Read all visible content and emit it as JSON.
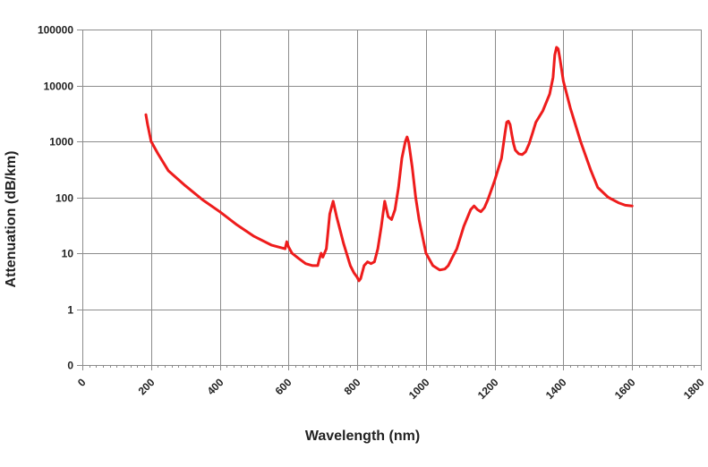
{
  "chart_data": {
    "type": "line",
    "title": "",
    "xlabel": "Wavelength (nm)",
    "ylabel": "Attenuation (dB/km)",
    "xlim": [
      0,
      1800
    ],
    "ylim": [
      0.1,
      100000
    ],
    "yscale": "log",
    "grid": true,
    "x_ticks": [
      0,
      200,
      400,
      600,
      800,
      1000,
      1200,
      1400,
      1600,
      1800
    ],
    "y_ticks": [
      {
        "value": 0.1,
        "label": "0"
      },
      {
        "value": 1,
        "label": "1"
      },
      {
        "value": 10,
        "label": "10"
      },
      {
        "value": 100,
        "label": "100"
      },
      {
        "value": 1000,
        "label": "1000"
      },
      {
        "value": 10000,
        "label": "10000"
      },
      {
        "value": 100000,
        "label": "100000"
      }
    ],
    "series": [
      {
        "color": "#ee1c1c",
        "x": [
          185,
          190,
          200,
          220,
          250,
          300,
          350,
          400,
          450,
          500,
          550,
          590,
          595,
          600,
          610,
          630,
          650,
          670,
          685,
          690,
          695,
          700,
          710,
          720,
          730,
          740,
          760,
          780,
          790,
          800,
          805,
          810,
          820,
          830,
          840,
          850,
          860,
          870,
          880,
          890,
          900,
          910,
          920,
          930,
          940,
          945,
          950,
          960,
          970,
          980,
          1000,
          1020,
          1040,
          1055,
          1065,
          1075,
          1090,
          1110,
          1130,
          1140,
          1150,
          1160,
          1170,
          1180,
          1200,
          1220,
          1230,
          1235,
          1240,
          1245,
          1250,
          1255,
          1260,
          1270,
          1280,
          1290,
          1300,
          1310,
          1320,
          1340,
          1360,
          1370,
          1375,
          1380,
          1385,
          1390,
          1400,
          1420,
          1450,
          1480,
          1500,
          1530,
          1560,
          1580,
          1600
        ],
        "y": [
          3000,
          2000,
          1000,
          600,
          300,
          160,
          90,
          55,
          32,
          20,
          14,
          12,
          16,
          13,
          10,
          8,
          6.5,
          6,
          6,
          8,
          10,
          8.5,
          12,
          50,
          85,
          45,
          15,
          6,
          4.5,
          3.7,
          3.2,
          3.5,
          6,
          7,
          6.5,
          7,
          12,
          30,
          85,
          45,
          40,
          60,
          150,
          500,
          1000,
          1200,
          950,
          350,
          100,
          40,
          10,
          6,
          5,
          5.2,
          6,
          8,
          12,
          30,
          60,
          70,
          60,
          55,
          65,
          90,
          200,
          500,
          1400,
          2200,
          2300,
          2000,
          1300,
          900,
          700,
          600,
          580,
          650,
          900,
          1400,
          2200,
          3500,
          7000,
          14000,
          35000,
          48000,
          45000,
          30000,
          12000,
          4000,
          1000,
          300,
          150,
          100,
          80,
          72,
          70
        ]
      }
    ]
  }
}
